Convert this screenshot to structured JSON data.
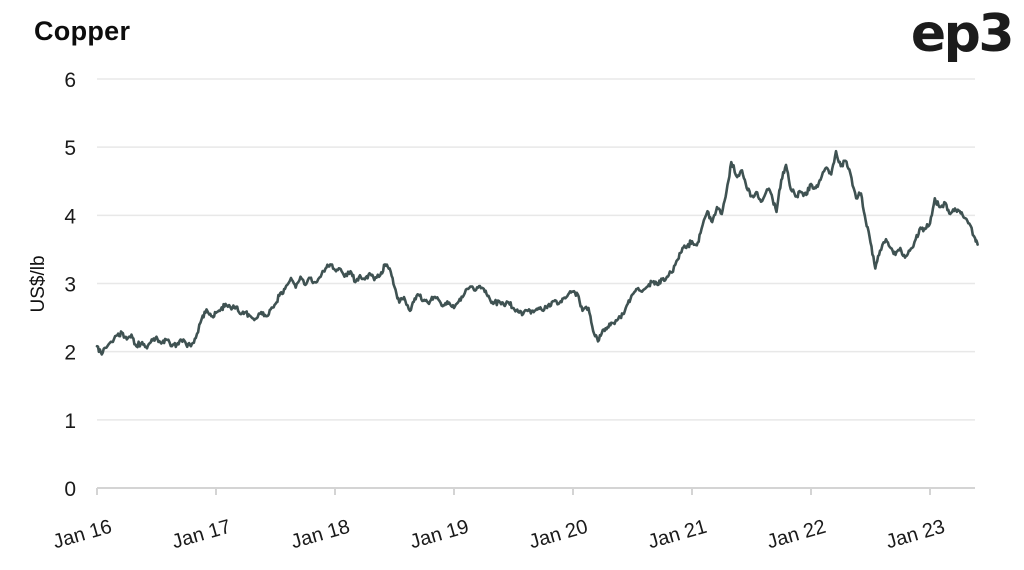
{
  "header": {
    "title": "Copper",
    "logo_text": "ep3"
  },
  "chart_data": {
    "type": "line",
    "title": "Copper",
    "xlabel": "",
    "ylabel": "US$/lb",
    "ylim": [
      0,
      6
    ],
    "yticks": [
      0,
      1,
      2,
      3,
      4,
      5,
      6
    ],
    "xticks": [
      2016,
      2017,
      2018,
      2019,
      2020,
      2021,
      2022,
      2023
    ],
    "xtick_labels": [
      "Jan 16",
      "Jan 17",
      "Jan 18",
      "Jan 19",
      "Jan 20",
      "Jan 21",
      "Jan 22",
      "Jan 23"
    ],
    "grid": "horizontal-only",
    "legend": "none",
    "colors": {
      "line": "#3f5252",
      "grid": "#e8e8e8",
      "axis": "#d4d4d4",
      "text": "#1a1a1a",
      "background": "#ffffff"
    },
    "series": [
      {
        "name": "Copper price",
        "unit": "US$/lb",
        "x": [
          2016.0,
          2016.04,
          2016.08,
          2016.17,
          2016.21,
          2016.25,
          2016.29,
          2016.33,
          2016.38,
          2016.42,
          2016.46,
          2016.5,
          2016.54,
          2016.58,
          2016.63,
          2016.67,
          2016.71,
          2016.75,
          2016.79,
          2016.83,
          2016.88,
          2016.92,
          2016.96,
          2017.0,
          2017.04,
          2017.08,
          2017.13,
          2017.17,
          2017.21,
          2017.25,
          2017.29,
          2017.33,
          2017.38,
          2017.42,
          2017.46,
          2017.5,
          2017.54,
          2017.58,
          2017.63,
          2017.67,
          2017.71,
          2017.75,
          2017.79,
          2017.83,
          2017.88,
          2017.92,
          2017.96,
          2018.0,
          2018.04,
          2018.08,
          2018.13,
          2018.17,
          2018.21,
          2018.25,
          2018.29,
          2018.33,
          2018.38,
          2018.42,
          2018.46,
          2018.5,
          2018.54,
          2018.58,
          2018.63,
          2018.67,
          2018.71,
          2018.75,
          2018.79,
          2018.83,
          2018.88,
          2018.92,
          2018.96,
          2019.0,
          2019.04,
          2019.08,
          2019.13,
          2019.17,
          2019.21,
          2019.25,
          2019.29,
          2019.33,
          2019.38,
          2019.42,
          2019.46,
          2019.5,
          2019.54,
          2019.58,
          2019.63,
          2019.67,
          2019.71,
          2019.75,
          2019.79,
          2019.83,
          2019.88,
          2019.92,
          2019.96,
          2020.0,
          2020.04,
          2020.08,
          2020.13,
          2020.17,
          2020.21,
          2020.25,
          2020.29,
          2020.33,
          2020.38,
          2020.42,
          2020.46,
          2020.5,
          2020.54,
          2020.58,
          2020.63,
          2020.67,
          2020.71,
          2020.75,
          2020.79,
          2020.83,
          2020.88,
          2020.92,
          2020.96,
          2021.0,
          2021.04,
          2021.08,
          2021.13,
          2021.17,
          2021.21,
          2021.25,
          2021.29,
          2021.33,
          2021.38,
          2021.42,
          2021.46,
          2021.5,
          2021.54,
          2021.58,
          2021.63,
          2021.67,
          2021.71,
          2021.75,
          2021.79,
          2021.83,
          2021.88,
          2021.92,
          2021.96,
          2022.0,
          2022.04,
          2022.08,
          2022.13,
          2022.17,
          2022.21,
          2022.25,
          2022.29,
          2022.33,
          2022.38,
          2022.42,
          2022.46,
          2022.5,
          2022.54,
          2022.58,
          2022.63,
          2022.67,
          2022.71,
          2022.75,
          2022.79,
          2022.83,
          2022.88,
          2022.92,
          2022.96,
          2023.0,
          2023.04,
          2023.08,
          2023.13,
          2023.17,
          2023.21,
          2023.25,
          2023.29,
          2023.33,
          2023.38,
          2023.4
        ],
        "y": [
          2.08,
          1.96,
          2.06,
          2.24,
          2.28,
          2.18,
          2.25,
          2.08,
          2.14,
          2.05,
          2.18,
          2.22,
          2.12,
          2.18,
          2.08,
          2.1,
          2.17,
          2.1,
          2.08,
          2.2,
          2.48,
          2.62,
          2.52,
          2.57,
          2.62,
          2.7,
          2.62,
          2.66,
          2.55,
          2.58,
          2.52,
          2.48,
          2.58,
          2.52,
          2.62,
          2.7,
          2.86,
          2.92,
          3.08,
          2.94,
          3.1,
          2.98,
          3.08,
          3.02,
          3.1,
          3.22,
          3.28,
          3.2,
          3.22,
          3.1,
          3.18,
          3.02,
          3.12,
          3.06,
          3.15,
          3.05,
          3.12,
          3.28,
          3.22,
          2.95,
          2.72,
          2.8,
          2.6,
          2.78,
          2.82,
          2.76,
          2.7,
          2.8,
          2.74,
          2.68,
          2.72,
          2.64,
          2.74,
          2.82,
          2.94,
          2.9,
          2.96,
          2.92,
          2.82,
          2.7,
          2.74,
          2.68,
          2.72,
          2.64,
          2.58,
          2.55,
          2.62,
          2.58,
          2.64,
          2.6,
          2.68,
          2.74,
          2.7,
          2.78,
          2.84,
          2.88,
          2.84,
          2.6,
          2.64,
          2.3,
          2.15,
          2.32,
          2.36,
          2.42,
          2.48,
          2.55,
          2.7,
          2.84,
          2.92,
          2.88,
          2.96,
          3.02,
          2.98,
          3.06,
          3.1,
          3.16,
          3.35,
          3.52,
          3.55,
          3.62,
          3.56,
          3.8,
          4.06,
          3.9,
          4.12,
          4.02,
          4.35,
          4.78,
          4.56,
          4.66,
          4.4,
          4.28,
          4.34,
          4.2,
          4.38,
          4.3,
          4.05,
          4.52,
          4.74,
          4.38,
          4.28,
          4.34,
          4.3,
          4.46,
          4.4,
          4.52,
          4.7,
          4.6,
          4.94,
          4.72,
          4.8,
          4.62,
          4.25,
          4.32,
          3.92,
          3.6,
          3.22,
          3.48,
          3.65,
          3.52,
          3.42,
          3.52,
          3.38,
          3.48,
          3.65,
          3.82,
          3.8,
          3.88,
          4.25,
          4.12,
          4.18,
          4.02,
          4.1,
          4.06,
          3.96,
          3.88,
          3.66,
          3.57
        ]
      }
    ]
  }
}
